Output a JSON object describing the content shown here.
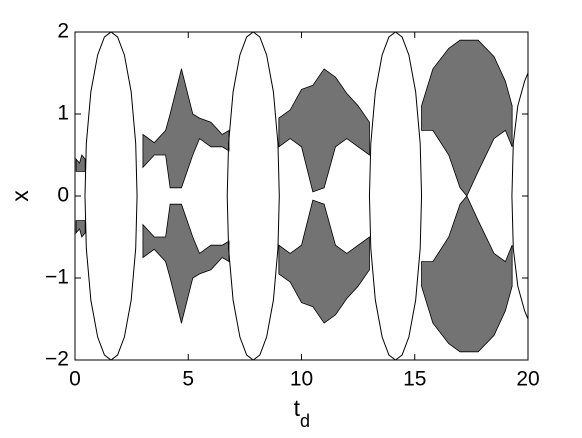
{
  "chart_data": {
    "type": "line",
    "x_label": {
      "text": "t",
      "subscript": "d"
    },
    "y_label": "x",
    "xlim": [
      0,
      20
    ],
    "ylim": [
      -2,
      2
    ],
    "xticks": [
      0,
      5,
      10,
      15,
      20
    ],
    "yticks": [
      {
        "value": -2,
        "label": "−2"
      },
      {
        "value": -1,
        "label": "−1"
      },
      0,
      1,
      2
    ],
    "grid": false,
    "series": [
      {
        "color": "#000000",
        "x": [
          0.44,
          0.5,
          0.7,
          1.0,
          1.3,
          1.59,
          1.88,
          2.18,
          2.48,
          2.68,
          2.74
        ],
        "values": [
          0,
          0.64,
          1.27,
          1.72,
          1.94,
          2,
          1.94,
          1.72,
          1.27,
          0.64,
          0
        ]
      },
      {
        "color": "#000000",
        "x": [
          0.44,
          0.5,
          0.7,
          1.0,
          1.3,
          1.59,
          1.88,
          2.18,
          2.48,
          2.68,
          2.74
        ],
        "values": [
          0,
          -0.64,
          -1.27,
          -1.72,
          -1.94,
          -2,
          -1.94,
          -1.72,
          -1.27,
          -0.64,
          0
        ]
      },
      {
        "color": "#000000",
        "x": [
          6.72,
          6.78,
          6.98,
          7.28,
          7.58,
          7.87,
          8.16,
          8.46,
          8.76,
          8.96,
          9.02
        ],
        "values": [
          0,
          0.64,
          1.27,
          1.72,
          1.94,
          2,
          1.94,
          1.72,
          1.27,
          0.64,
          0
        ]
      },
      {
        "color": "#000000",
        "x": [
          6.72,
          6.78,
          6.98,
          7.28,
          7.58,
          7.87,
          8.16,
          8.46,
          8.76,
          8.96,
          9.02
        ],
        "values": [
          0,
          -0.64,
          -1.27,
          -1.72,
          -1.94,
          -2,
          -1.94,
          -1.72,
          -1.27,
          -0.64,
          0
        ]
      },
      {
        "color": "#000000",
        "x": [
          13.0,
          13.06,
          13.26,
          13.56,
          13.86,
          14.15,
          14.44,
          14.74,
          15.04,
          15.24,
          15.3
        ],
        "values": [
          0,
          0.64,
          1.27,
          1.72,
          1.94,
          2,
          1.94,
          1.72,
          1.27,
          0.64,
          0
        ]
      },
      {
        "color": "#000000",
        "x": [
          13.0,
          13.06,
          13.26,
          13.56,
          13.86,
          14.15,
          14.44,
          14.74,
          15.04,
          15.24,
          15.3
        ],
        "values": [
          0,
          -0.64,
          -1.27,
          -1.72,
          -1.94,
          -2,
          -1.94,
          -1.72,
          -1.27,
          -0.64,
          0
        ]
      },
      {
        "color": "#000000",
        "x": [
          19.29,
          19.35,
          19.55,
          19.85,
          20
        ],
        "values": [
          0,
          0.64,
          1.1,
          1.4,
          1.5
        ]
      },
      {
        "color": "#000000",
        "x": [
          19.29,
          19.35,
          19.55,
          19.85,
          20
        ],
        "values": [
          0,
          -0.64,
          -1.1,
          -1.4,
          -1.5
        ]
      },
      {
        "color": "#000000",
        "x": [
          0.05,
          0.2,
          0.3,
          0.45
        ],
        "values": [
          0.45,
          0.4,
          0.5,
          0.45
        ],
        "inner": [
          0.3,
          0.3,
          0.3,
          0.3
        ]
      },
      {
        "color": "#000000",
        "x": [
          0.05,
          0.2,
          0.3,
          0.45
        ],
        "values": [
          -0.45,
          -0.4,
          -0.5,
          -0.45
        ],
        "inner": [
          -0.3,
          -0.3,
          -0.3,
          -0.3
        ]
      },
      {
        "color": "#000000",
        "x": [
          3.0,
          3.5,
          4.0,
          4.2,
          4.7,
          5.2,
          5.5,
          6.0,
          6.5,
          6.8
        ],
        "values": [
          0.75,
          0.65,
          0.8,
          1.0,
          1.55,
          1.0,
          0.95,
          0.9,
          0.75,
          0.8
        ],
        "inner": [
          0.35,
          0.5,
          0.5,
          0.1,
          0.1,
          0.5,
          0.7,
          0.6,
          0.6,
          0.55
        ]
      },
      {
        "color": "#000000",
        "x": [
          3.0,
          3.5,
          4.0,
          4.2,
          4.7,
          5.2,
          5.5,
          6.0,
          6.5,
          6.8
        ],
        "values": [
          -0.75,
          -0.65,
          -0.8,
          -1.0,
          -1.55,
          -1.0,
          -0.95,
          -0.9,
          -0.75,
          -0.8
        ],
        "inner": [
          -0.35,
          -0.5,
          -0.5,
          -0.1,
          -0.1,
          -0.5,
          -0.7,
          -0.6,
          -0.6,
          -0.55
        ]
      },
      {
        "color": "#000000",
        "x": [
          9.0,
          9.5,
          10.0,
          10.5,
          11.0,
          11.5,
          12.0,
          12.5,
          13.0
        ],
        "values": [
          0.95,
          1.05,
          1.3,
          1.35,
          1.55,
          1.45,
          1.25,
          1.1,
          0.9
        ],
        "inner": [
          0.6,
          0.7,
          0.6,
          0.05,
          0.1,
          0.6,
          0.7,
          0.6,
          0.5
        ]
      },
      {
        "color": "#000000",
        "x": [
          9.0,
          9.5,
          10.0,
          10.5,
          11.0,
          11.5,
          12.0,
          12.5,
          13.0
        ],
        "values": [
          -0.95,
          -1.05,
          -1.3,
          -1.35,
          -1.55,
          -1.45,
          -1.25,
          -1.1,
          -0.9
        ],
        "inner": [
          -0.6,
          -0.7,
          -0.6,
          -0.05,
          -0.1,
          -0.6,
          -0.7,
          -0.6,
          -0.5
        ]
      },
      {
        "color": "#000000",
        "x": [
          15.3,
          15.8,
          16.5,
          17.0,
          17.3,
          17.8,
          18.5,
          19.0,
          19.3
        ],
        "values": [
          1.1,
          1.55,
          1.8,
          1.9,
          1.9,
          1.9,
          1.7,
          1.4,
          1.1
        ],
        "inner": [
          0.8,
          0.8,
          0.5,
          0.1,
          0.0,
          0.3,
          0.7,
          0.8,
          0.6
        ]
      },
      {
        "color": "#000000",
        "x": [
          15.3,
          15.8,
          16.5,
          17.0,
          17.3,
          17.8,
          18.5,
          19.0,
          19.3
        ],
        "values": [
          -1.1,
          -1.55,
          -1.8,
          -1.9,
          -1.9,
          -1.9,
          -1.7,
          -1.4,
          -1.1
        ],
        "inner": [
          -0.8,
          -0.8,
          -0.5,
          -0.1,
          0.0,
          -0.3,
          -0.7,
          -0.8,
          -0.6
        ]
      }
    ]
  }
}
